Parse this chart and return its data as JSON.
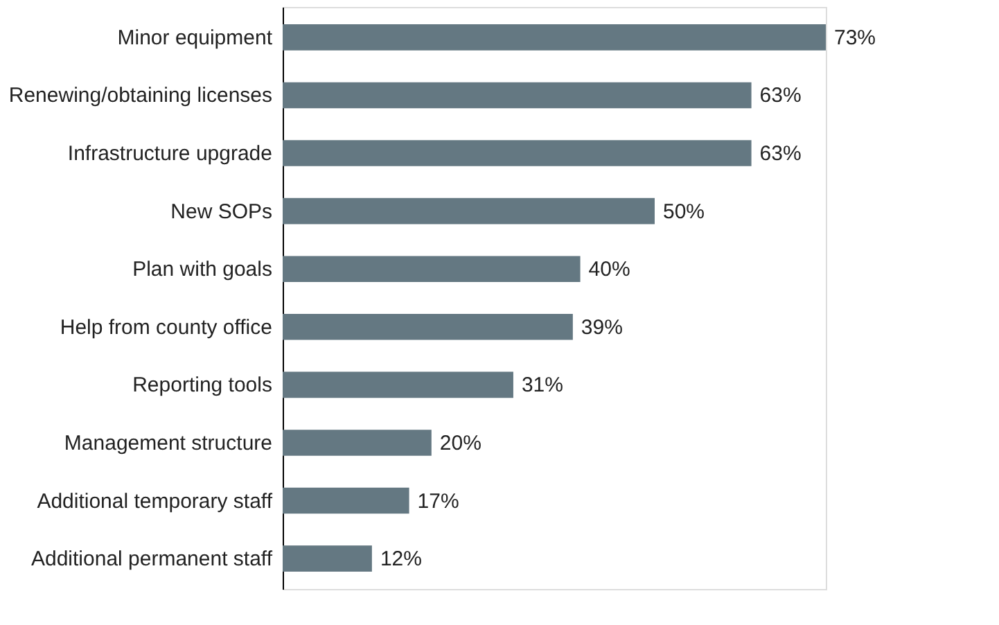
{
  "chart_data": {
    "type": "bar",
    "orientation": "horizontal",
    "categories": [
      "Minor equipment",
      "Renewing/obtaining licenses",
      "Infrastructure upgrade",
      "New SOPs",
      "Plan with goals",
      "Help from county office",
      "Reporting tools",
      "Management structure",
      "Additional temporary staff",
      "Additional permanent staff"
    ],
    "values": [
      73,
      63,
      63,
      50,
      40,
      39,
      31,
      20,
      17,
      12
    ],
    "value_labels": [
      "73%",
      "63%",
      "63%",
      "50%",
      "40%",
      "39%",
      "31%",
      "20%",
      "17%",
      "12%"
    ],
    "color": "#647882",
    "grid": false,
    "tick_labels": "y"
  }
}
